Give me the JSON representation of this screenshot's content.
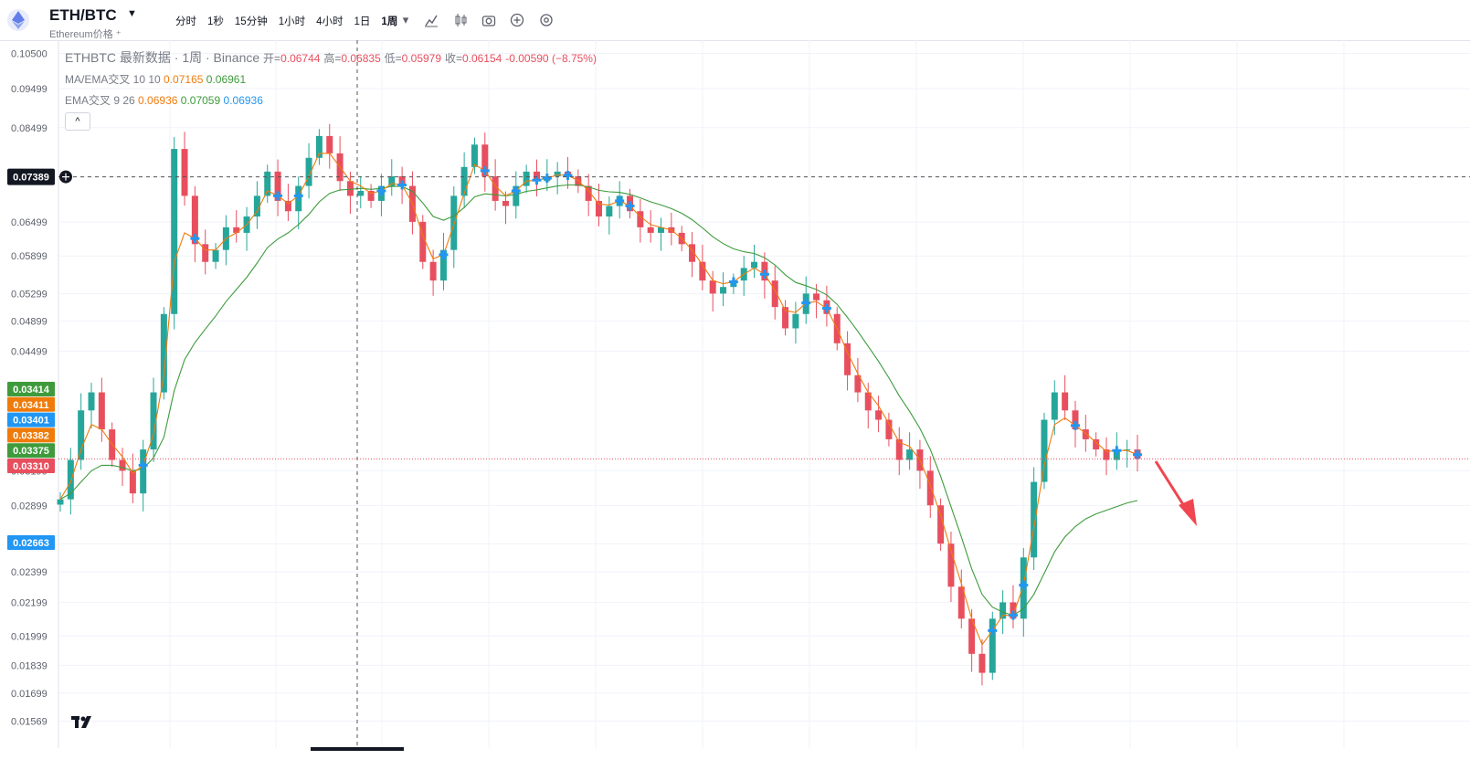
{
  "header": {
    "symbol": "ETH/BTC",
    "subtitle": "Ethereum价格 ⁺",
    "intervals": [
      "分时",
      "1秒",
      "15分钟",
      "1小时",
      "4小时",
      "1日",
      "1周"
    ],
    "active_interval": "1周"
  },
  "legend": {
    "name": "ETHBTC 最新数据 · 1周 · Binance",
    "open_label": "开=",
    "open": "0.06744",
    "high_label": "高=",
    "high": "0.06835",
    "low_label": "低=",
    "low": "0.05979",
    "close_label": "收=",
    "close": "0.06154",
    "change": "-0.00590 (−8.75%)",
    "ma_label": "MA/EMA交叉 10 10",
    "ma_v1": "0.07165",
    "ma_v2": "0.06961",
    "ema_label": "EMA交叉 9 26",
    "ema_v1": "0.06936",
    "ema_v2": "0.07059",
    "ema_v3": "0.06936",
    "collapse": "^"
  },
  "crosshair_price": "0.07389",
  "last_price_tags": [
    {
      "value": "0.03414",
      "color": "#3e9b3c"
    },
    {
      "value": "0.03411",
      "color": "#ef7b0b"
    },
    {
      "value": "0.03401",
      "color": "#2196f3"
    },
    {
      "value": "0.03382",
      "color": "#ef7b0b"
    },
    {
      "value": "0.03375",
      "color": "#3e9b3c"
    },
    {
      "value": "0.03310",
      "color": "#e84f5e"
    }
  ],
  "low_tag": {
    "value": "0.02663",
    "color": "#2196f3"
  },
  "tv_logo": "17",
  "colors": {
    "up": "#26a69a",
    "down": "#e84f5e",
    "ma": "#ef7b0b",
    "ema_slow": "#3e9b3c",
    "signal": "#2196f3",
    "arrow": "#f0464f"
  },
  "chart_data": {
    "type": "candlestick",
    "y_scale": "log",
    "y_ticks": [
      "0.10500",
      "0.09499",
      "0.08499",
      "0.07389",
      "0.06499",
      "0.05899",
      "0.05299",
      "0.04899",
      "0.04499",
      "0.03199",
      "0.02899",
      "0.02599",
      "0.02399",
      "0.02199",
      "0.01999",
      "0.01839",
      "0.01699",
      "0.01569"
    ],
    "close_series": [
      0.0295,
      0.033,
      0.038,
      0.04,
      0.036,
      0.033,
      0.032,
      0.03,
      0.034,
      0.04,
      0.05,
      0.08,
      0.07,
      0.061,
      0.058,
      0.06,
      0.064,
      0.063,
      0.066,
      0.07,
      0.075,
      0.069,
      0.067,
      0.072,
      0.078,
      0.083,
      0.079,
      0.073,
      0.07,
      0.071,
      0.069,
      0.072,
      0.074,
      0.072,
      0.065,
      0.058,
      0.055,
      0.06,
      0.07,
      0.076,
      0.081,
      0.074,
      0.069,
      0.068,
      0.072,
      0.075,
      0.073,
      0.074,
      0.075,
      0.074,
      0.072,
      0.069,
      0.066,
      0.068,
      0.07,
      0.067,
      0.064,
      0.063,
      0.064,
      0.063,
      0.061,
      0.058,
      0.055,
      0.053,
      0.054,
      0.055,
      0.057,
      0.058,
      0.055,
      0.051,
      0.048,
      0.05,
      0.053,
      0.052,
      0.05,
      0.046,
      0.042,
      0.04,
      0.038,
      0.037,
      0.035,
      0.033,
      0.034,
      0.032,
      0.029,
      0.026,
      0.023,
      0.021,
      0.019,
      0.018,
      0.021,
      0.022,
      0.021,
      0.025,
      0.031,
      0.037,
      0.04,
      0.038,
      0.036,
      0.035,
      0.034,
      0.033,
      0.034,
      0.034,
      0.0331
    ],
    "ma_series": [
      0.0295,
      0.031,
      0.034,
      0.0365,
      0.036,
      0.0345,
      0.0333,
      0.0318,
      0.0325,
      0.0355,
      0.042,
      0.058,
      0.063,
      0.062,
      0.06,
      0.06,
      0.062,
      0.063,
      0.0645,
      0.067,
      0.071,
      0.07,
      0.0685,
      0.07,
      0.074,
      0.079,
      0.079,
      0.076,
      0.073,
      0.072,
      0.0705,
      0.071,
      0.0725,
      0.0722,
      0.0685,
      0.0625,
      0.0585,
      0.0592,
      0.0645,
      0.0705,
      0.0765,
      0.0752,
      0.072,
      0.07,
      0.071,
      0.073,
      0.0732,
      0.0736,
      0.0743,
      0.0742,
      0.0731,
      0.071,
      0.0684,
      0.0682,
      0.069,
      0.068,
      0.066,
      0.0645,
      0.064,
      0.0635,
      0.062,
      0.06,
      0.0575,
      0.055,
      0.0545,
      0.0548,
      0.056,
      0.057,
      0.056,
      0.0535,
      0.0505,
      0.0502,
      0.0516,
      0.0518,
      0.0508,
      0.048,
      0.0448,
      0.0422,
      0.04,
      0.0385,
      0.0366,
      0.0347,
      0.0343,
      0.033,
      0.0307,
      0.0282,
      0.0255,
      0.0232,
      0.021,
      0.0195,
      0.0203,
      0.0212,
      0.0212,
      0.0231,
      0.0272,
      0.0325,
      0.0365,
      0.0372,
      0.0364,
      0.0356,
      0.0347,
      0.0338,
      0.0339,
      0.0339,
      0.0335
    ],
    "ema_slow_series": [
      0.0295,
      0.03,
      0.031,
      0.032,
      0.0325,
      0.0325,
      0.0323,
      0.032,
      0.0322,
      0.0332,
      0.0352,
      0.0402,
      0.0439,
      0.0461,
      0.0479,
      0.0497,
      0.0518,
      0.0536,
      0.0555,
      0.0578,
      0.0604,
      0.0619,
      0.063,
      0.0645,
      0.0664,
      0.0688,
      0.0705,
      0.0712,
      0.0713,
      0.0715,
      0.0713,
      0.0715,
      0.0719,
      0.0719,
      0.0709,
      0.0686,
      0.066,
      0.0653,
      0.0661,
      0.0677,
      0.0698,
      0.0704,
      0.0702,
      0.07,
      0.0703,
      0.0709,
      0.0712,
      0.0716,
      0.072,
      0.0722,
      0.0722,
      0.0718,
      0.0711,
      0.0708,
      0.0707,
      0.0703,
      0.0696,
      0.0688,
      0.0682,
      0.0675,
      0.0666,
      0.0654,
      0.0639,
      0.0623,
      0.0611,
      0.0602,
      0.0597,
      0.0594,
      0.0587,
      0.0575,
      0.0559,
      0.0547,
      0.0542,
      0.0536,
      0.0528,
      0.0514,
      0.0495,
      0.0476,
      0.0456,
      0.0437,
      0.0417,
      0.0396,
      0.0379,
      0.0361,
      0.034,
      0.0315,
      0.0289,
      0.0265,
      0.0242,
      0.0225,
      0.0217,
      0.0214,
      0.0212,
      0.0216,
      0.0225,
      0.0239,
      0.0254,
      0.0265,
      0.0273,
      0.0279,
      0.0283,
      0.0286,
      0.0289,
      0.0292,
      0.0294
    ]
  }
}
